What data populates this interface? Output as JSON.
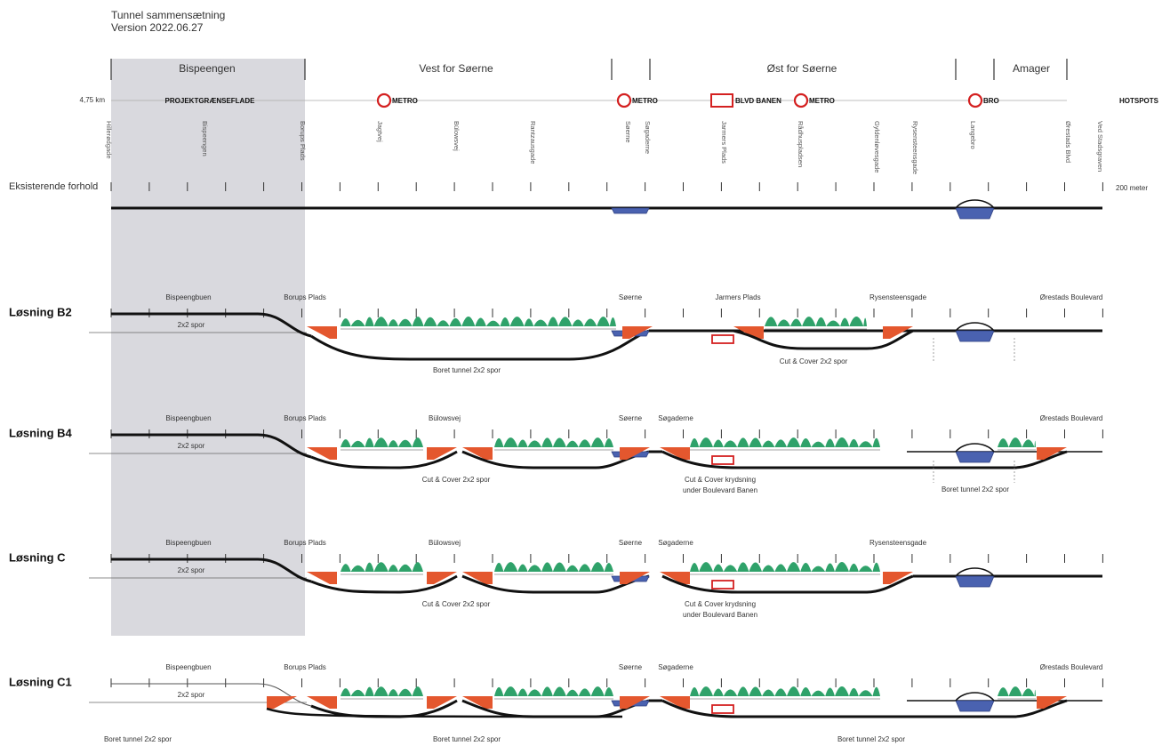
{
  "header": {
    "title": "Tunnel sammensætning",
    "version": "Version 2022.06.27"
  },
  "districts": [
    "Bispeengen",
    "Vest for Søerne",
    "Øst for Søerne",
    "Amager"
  ],
  "scale_length": "4,75 km",
  "boundary": "PROJEKTGRÆNSEFLADE",
  "hotspots": [
    "METRO",
    "METRO",
    "BLVD BANEN",
    "METRO",
    "BRO"
  ],
  "hotspots_label": "HOTSPOTS",
  "streets": [
    "Hillerødgade",
    "Bispeengen",
    "Borups Plads",
    "Jagtvej",
    "Bülowsvej",
    "Rantzausgade",
    "Søerne",
    "Søgaderne",
    "Jarmers Plads",
    "Rådhuspladsen",
    "Gyldenløvesgade",
    "Rysensteensgade",
    "Langebro",
    "Ørestads Blvd",
    "Ved Stadsgraven"
  ],
  "existing": {
    "label": "Eksisterende forhold",
    "scale": "200 meter"
  },
  "solutions": [
    {
      "name": "Løsning B2",
      "labels": [
        "Bispeengbuen",
        "Borups Plads",
        "Søerne",
        "Jarmers Plads",
        "Rysensteensgade",
        "Ørestads Boulevard"
      ],
      "notes": [
        "2x2 spor",
        "Boret tunnel 2x2 spor",
        "Cut & Cover 2x2 spor"
      ]
    },
    {
      "name": "Løsning B4",
      "labels": [
        "Bispeengbuen",
        "Borups Plads",
        "Bülowsvej",
        "Søerne",
        "Søgaderne",
        "Ørestads Boulevard"
      ],
      "notes": [
        "2x2 spor",
        "Cut & Cover 2x2 spor",
        "Cut & Cover krydsning",
        "under Boulevard Banen",
        "Boret tunnel 2x2 spor"
      ]
    },
    {
      "name": "Løsning C",
      "labels": [
        "Bispeengbuen",
        "Borups Plads",
        "Bülowsvej",
        "Søerne",
        "Søgaderne",
        "Rysensteensgade"
      ],
      "notes": [
        "2x2 spor",
        "Cut & Cover 2x2 spor",
        "Cut & Cover krydsning",
        "under Boulevard Banen"
      ]
    },
    {
      "name": "Løsning C1",
      "labels": [
        "Bispeengbuen",
        "Borups Plads",
        "Søerne",
        "Søgaderne",
        "Ørestads Boulevard"
      ],
      "notes": [
        "2x2 spor",
        "Boret tunnel 2x2 spor",
        "Boret tunnel 2x2 spor",
        "Boret tunnel 2x2 spor"
      ]
    }
  ]
}
